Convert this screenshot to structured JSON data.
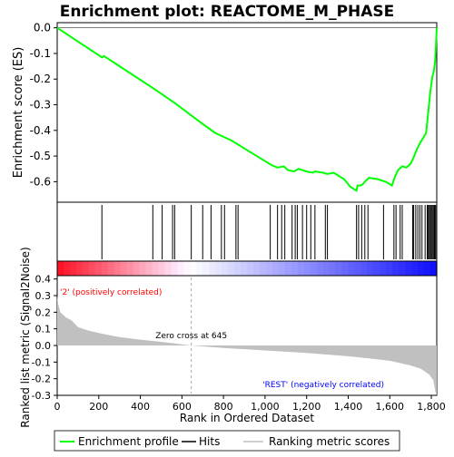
{
  "chart_data": {
    "type": "line",
    "title": "Enrichment plot: REACTOME_M_PHASE",
    "top_panel": {
      "ylabel": "Enrichment score (ES)",
      "ylim": [
        -0.68,
        0.02
      ],
      "yticks": [
        0.0,
        -0.1,
        -0.2,
        -0.3,
        -0.4,
        -0.5,
        -0.6
      ],
      "ytick_labels": [
        "0.0",
        "-0.1",
        "-0.2",
        "-0.3",
        "-0.4",
        "-0.5",
        "-0.6"
      ],
      "series": [
        {
          "name": "Enrichment profile",
          "color": "#00ff00",
          "x": [
            0,
            215,
            225,
            460,
            560,
            700,
            760,
            800,
            840,
            880,
            1000,
            1030,
            1060,
            1090,
            1110,
            1140,
            1160,
            1200,
            1230,
            1240,
            1280,
            1300,
            1330,
            1380,
            1410,
            1440,
            1445,
            1460,
            1470,
            1480,
            1500,
            1540,
            1580,
            1610,
            1625,
            1640,
            1660,
            1680,
            1700,
            1715,
            1730,
            1745,
            1760,
            1775,
            1785,
            1795,
            1805,
            1812,
            1818,
            1822,
            1826
          ],
          "y": [
            0.0,
            -0.115,
            -0.11,
            -0.235,
            -0.29,
            -0.375,
            -0.41,
            -0.425,
            -0.44,
            -0.46,
            -0.52,
            -0.535,
            -0.545,
            -0.54,
            -0.555,
            -0.56,
            -0.55,
            -0.56,
            -0.565,
            -0.56,
            -0.565,
            -0.57,
            -0.565,
            -0.59,
            -0.62,
            -0.635,
            -0.615,
            -0.615,
            -0.61,
            -0.6,
            -0.585,
            -0.59,
            -0.6,
            -0.615,
            -0.58,
            -0.555,
            -0.54,
            -0.545,
            -0.53,
            -0.505,
            -0.475,
            -0.45,
            -0.43,
            -0.41,
            -0.33,
            -0.25,
            -0.19,
            -0.17,
            -0.13,
            -0.07,
            0.0
          ]
        }
      ]
    },
    "hits": [
      215,
      460,
      505,
      555,
      565,
      645,
      700,
      740,
      790,
      805,
      860,
      870,
      1025,
      1060,
      1080,
      1095,
      1130,
      1145,
      1155,
      1180,
      1200,
      1220,
      1240,
      1290,
      1300,
      1440,
      1450,
      1465,
      1480,
      1495,
      1570,
      1620,
      1630,
      1650,
      1660,
      1710,
      1715,
      1725,
      1735,
      1745,
      1755,
      1770,
      1780,
      1785,
      1790,
      1795,
      1800,
      1805,
      1810,
      1815,
      1820,
      1825
    ],
    "bottom_panel": {
      "ylabel": "Ranked list metric (Signal2Noise)",
      "xlabel": "Rank in Ordered Dataset",
      "ylim": [
        -0.3,
        0.42
      ],
      "yticks": [
        0.4,
        0.3,
        0.2,
        0.1,
        0.0,
        -0.1,
        -0.2,
        -0.3
      ],
      "ytick_labels": [
        "0.4",
        "0.3",
        "0.2",
        "0.1",
        "0.0",
        "-0.1",
        "-0.2",
        "-0.3"
      ],
      "xlim": [
        0,
        1826
      ],
      "xticks": [
        0,
        200,
        400,
        600,
        800,
        1000,
        1200,
        1400,
        1600,
        1800
      ],
      "xtick_labels": [
        "0",
        "200",
        "400",
        "600",
        "800",
        "1,000",
        "1,200",
        "1,400",
        "1,600",
        "1,800"
      ],
      "metric_x": [
        0,
        5,
        15,
        40,
        70,
        100,
        150,
        200,
        300,
        400,
        500,
        645,
        800,
        1000,
        1200,
        1400,
        1500,
        1600,
        1700,
        1750,
        1790,
        1810,
        1820,
        1826
      ],
      "metric_y": [
        0.3,
        0.25,
        0.2,
        0.17,
        0.15,
        0.11,
        0.09,
        0.075,
        0.05,
        0.035,
        0.022,
        0.0,
        -0.015,
        -0.03,
        -0.045,
        -0.065,
        -0.078,
        -0.092,
        -0.12,
        -0.14,
        -0.175,
        -0.21,
        -0.28,
        -0.3
      ],
      "zero_cross": 645,
      "zero_cross_label": "Zero cross at 645",
      "pos_label": "'2' (positively correlated)",
      "neg_label": "'REST' (negatively correlated)"
    },
    "legend": {
      "placement": "bottom",
      "items": [
        {
          "label": "Enrichment profile",
          "color": "#00ff00"
        },
        {
          "label": "Hits",
          "color": "#000000"
        },
        {
          "label": "Ranking metric scores",
          "color": "#c0c0c0"
        }
      ]
    }
  }
}
